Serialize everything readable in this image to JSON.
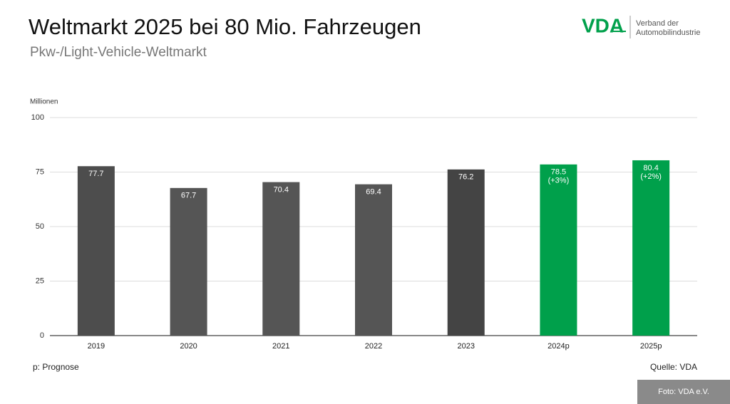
{
  "header": {
    "title": "Weltmarkt 2025 bei 80 Mio. Fahrzeugen",
    "subtitle": "Pkw-/Light-Vehicle-Weltmarkt",
    "logo": "VDA",
    "org_line1": "Verband der",
    "org_line2": "Automobilindustrie"
  },
  "chart_data": {
    "type": "bar",
    "ylabel": "Millionen",
    "categories": [
      "2019",
      "2020",
      "2021",
      "2022",
      "2023",
      "2024p",
      "2025p"
    ],
    "values": [
      77.7,
      67.7,
      70.4,
      69.4,
      76.2,
      78.5,
      80.4
    ],
    "value_labels": [
      [
        "77.7"
      ],
      [
        "67.7"
      ],
      [
        "70.4"
      ],
      [
        "69.4"
      ],
      [
        "76.2"
      ],
      [
        "78.5",
        "(+3%)"
      ],
      [
        "80.4",
        "(+2%)"
      ]
    ],
    "colors": [
      "#4d4d4d",
      "#555555",
      "#555555",
      "#555555",
      "#444444",
      "#00a04b",
      "#00a04b"
    ],
    "ylim": [
      0,
      100
    ],
    "yticks": [
      0,
      25,
      50,
      75,
      100
    ],
    "grid": true
  },
  "footer": {
    "note": "p: Prognose",
    "source": "Quelle: VDA",
    "credit": "Foto: VDA e.V."
  }
}
